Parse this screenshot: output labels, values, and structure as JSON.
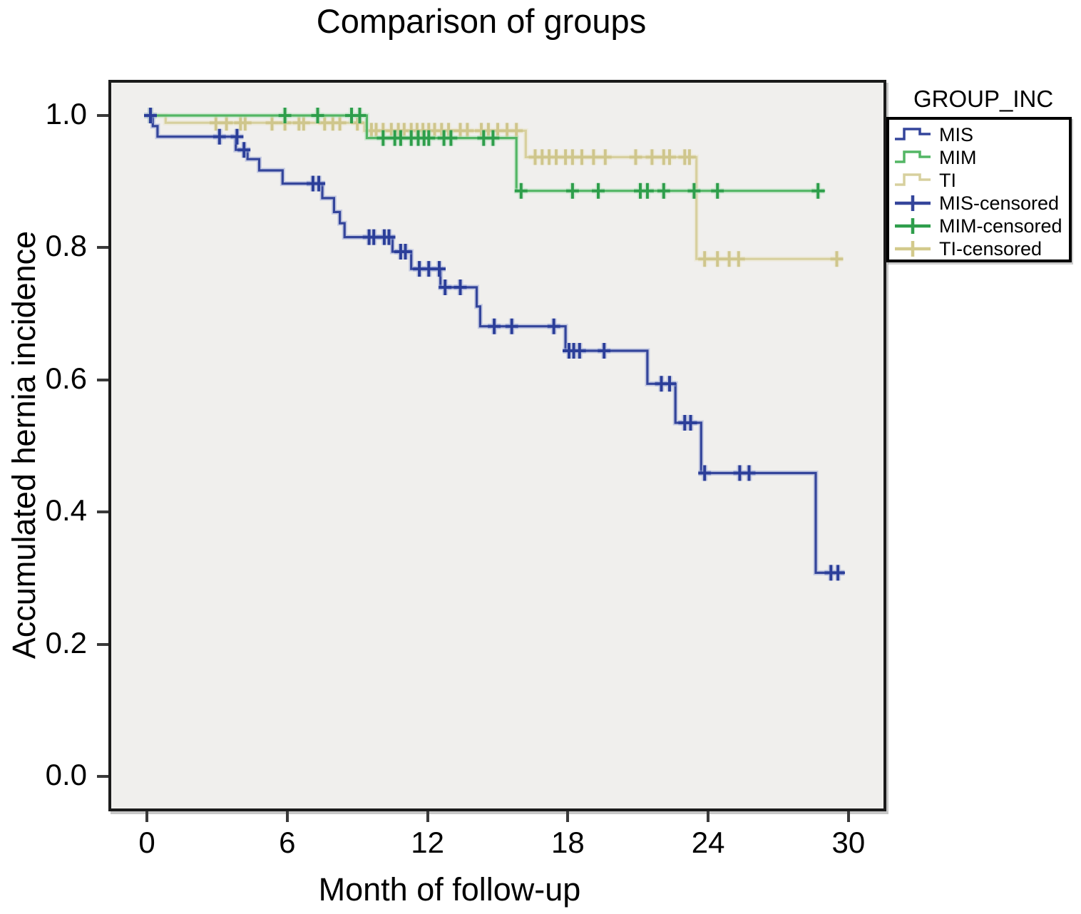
{
  "chart": {
    "title": "Comparison of groups",
    "x_label": "Month of follow-up",
    "y_label": "Accumulated hernia incidence",
    "legend_title": "GROUP_INC"
  },
  "legend": {
    "title": "GROUP_INC",
    "items": [
      {
        "label": "MIS",
        "type": "step",
        "color": "#34459B"
      },
      {
        "label": "MIM",
        "type": "step",
        "color": "#53B665"
      },
      {
        "label": "TI",
        "type": "step",
        "color": "#D7D09E"
      },
      {
        "label": "MIS-censored",
        "type": "censor",
        "color": "#34459B"
      },
      {
        "label": "MIM-censored",
        "type": "censor",
        "color": "#2E9E4B"
      },
      {
        "label": "TI-censored",
        "type": "censor",
        "color": "#D3CA8C"
      }
    ]
  },
  "chart_data": {
    "type": "line",
    "subtype": "kaplan-meier-step",
    "title": "Comparison of groups",
    "xlabel": "Month of follow-up",
    "ylabel": "Accumulated hernia incidence",
    "legend_position": "outside-right-top",
    "grid": false,
    "plot_background": "#F0EFED",
    "x_range": [
      -1.65,
      31.62
    ],
    "y_range": [
      -0.053,
      1.054
    ],
    "x_ticks": [
      0,
      6,
      12,
      18,
      24,
      30
    ],
    "y_ticks": [
      0.0,
      0.2,
      0.4,
      0.6,
      0.8,
      1.0
    ],
    "series": [
      {
        "name": "TI",
        "color": "#D7D09E",
        "halo": "#EAE6CC",
        "censor_color": "#CFC68C",
        "end": 29.75,
        "steps": [
          [
            0,
            1.0
          ],
          [
            0.8,
            0.989
          ],
          [
            9.3,
            0.977
          ],
          [
            16.2,
            0.937
          ],
          [
            23.5,
            0.783
          ]
        ],
        "censors": [
          [
            0.15,
            1.0
          ],
          [
            2.95,
            0.989
          ],
          [
            3.4,
            0.989
          ],
          [
            4.0,
            0.989
          ],
          [
            4.2,
            0.989
          ],
          [
            5.35,
            0.989
          ],
          [
            5.9,
            0.989
          ],
          [
            6.5,
            0.989
          ],
          [
            6.7,
            0.989
          ],
          [
            7.6,
            0.989
          ],
          [
            7.95,
            0.989
          ],
          [
            8.25,
            0.989
          ],
          [
            9.0,
            0.989
          ],
          [
            9.6,
            0.977
          ],
          [
            9.8,
            0.977
          ],
          [
            10.1,
            0.977
          ],
          [
            10.45,
            0.977
          ],
          [
            10.75,
            0.977
          ],
          [
            11.0,
            0.977
          ],
          [
            11.3,
            0.977
          ],
          [
            11.55,
            0.977
          ],
          [
            11.8,
            0.977
          ],
          [
            12.05,
            0.977
          ],
          [
            12.3,
            0.977
          ],
          [
            12.6,
            0.977
          ],
          [
            12.9,
            0.977
          ],
          [
            13.4,
            0.977
          ],
          [
            13.7,
            0.977
          ],
          [
            14.3,
            0.977
          ],
          [
            14.6,
            0.977
          ],
          [
            15.0,
            0.977
          ],
          [
            15.4,
            0.977
          ],
          [
            15.8,
            0.977
          ],
          [
            16.6,
            0.937
          ],
          [
            16.9,
            0.937
          ],
          [
            17.2,
            0.937
          ],
          [
            17.5,
            0.937
          ],
          [
            17.9,
            0.937
          ],
          [
            18.2,
            0.937
          ],
          [
            18.6,
            0.937
          ],
          [
            19.1,
            0.937
          ],
          [
            19.6,
            0.937
          ],
          [
            20.9,
            0.937
          ],
          [
            21.6,
            0.937
          ],
          [
            22.1,
            0.937
          ],
          [
            22.35,
            0.937
          ],
          [
            23.0,
            0.937
          ],
          [
            23.2,
            0.937
          ],
          [
            23.85,
            0.783
          ],
          [
            24.4,
            0.783
          ],
          [
            24.9,
            0.783
          ],
          [
            25.3,
            0.783
          ],
          [
            29.5,
            0.783
          ]
        ]
      },
      {
        "name": "MIM",
        "color": "#53B665",
        "halo": "#B5DFBE",
        "censor_color": "#2E9E4B",
        "end": 29.0,
        "steps": [
          [
            0,
            1.0
          ],
          [
            9.4,
            0.966
          ],
          [
            15.8,
            0.886
          ]
        ],
        "censors": [
          [
            0.15,
            1.0
          ],
          [
            5.9,
            1.0
          ],
          [
            7.3,
            1.0
          ],
          [
            8.75,
            1.0
          ],
          [
            9.1,
            1.0
          ],
          [
            10.1,
            0.966
          ],
          [
            10.6,
            0.966
          ],
          [
            10.85,
            0.966
          ],
          [
            11.3,
            0.966
          ],
          [
            11.6,
            0.966
          ],
          [
            11.85,
            0.966
          ],
          [
            12.05,
            0.966
          ],
          [
            12.7,
            0.966
          ],
          [
            13.0,
            0.966
          ],
          [
            14.4,
            0.966
          ],
          [
            14.8,
            0.966
          ],
          [
            16.0,
            0.886
          ],
          [
            18.2,
            0.886
          ],
          [
            19.3,
            0.886
          ],
          [
            21.1,
            0.886
          ],
          [
            21.4,
            0.886
          ],
          [
            22.1,
            0.886
          ],
          [
            23.4,
            0.886
          ],
          [
            24.4,
            0.886
          ],
          [
            28.7,
            0.886
          ]
        ]
      },
      {
        "name": "MIS",
        "color": "#34459B",
        "halo": "#9AA6D6",
        "censor_color": "#2B3E99",
        "end": 29.85,
        "steps": [
          [
            0,
            1.0
          ],
          [
            0.25,
            0.984
          ],
          [
            0.45,
            0.968
          ],
          [
            3.8,
            0.948
          ],
          [
            4.3,
            0.934
          ],
          [
            4.8,
            0.917
          ],
          [
            5.8,
            0.897
          ],
          [
            7.5,
            0.875
          ],
          [
            8.0,
            0.854
          ],
          [
            8.25,
            0.837
          ],
          [
            8.45,
            0.816
          ],
          [
            10.5,
            0.794
          ],
          [
            11.3,
            0.768
          ],
          [
            12.55,
            0.74
          ],
          [
            14.1,
            0.711
          ],
          [
            14.25,
            0.681
          ],
          [
            17.9,
            0.644
          ],
          [
            21.4,
            0.594
          ],
          [
            22.6,
            0.535
          ],
          [
            23.7,
            0.459
          ],
          [
            28.6,
            0.308
          ]
        ],
        "censors": [
          [
            0.15,
            1.0
          ],
          [
            3.1,
            0.968
          ],
          [
            3.85,
            0.968
          ],
          [
            4.15,
            0.948
          ],
          [
            7.1,
            0.897
          ],
          [
            7.35,
            0.897
          ],
          [
            9.5,
            0.816
          ],
          [
            9.7,
            0.816
          ],
          [
            10.15,
            0.816
          ],
          [
            10.35,
            0.816
          ],
          [
            10.85,
            0.794
          ],
          [
            11.05,
            0.794
          ],
          [
            11.65,
            0.768
          ],
          [
            12.05,
            0.768
          ],
          [
            12.5,
            0.768
          ],
          [
            12.75,
            0.74
          ],
          [
            13.4,
            0.74
          ],
          [
            14.85,
            0.681
          ],
          [
            15.6,
            0.681
          ],
          [
            17.4,
            0.681
          ],
          [
            18.05,
            0.644
          ],
          [
            18.25,
            0.644
          ],
          [
            18.5,
            0.644
          ],
          [
            19.55,
            0.644
          ],
          [
            22.0,
            0.594
          ],
          [
            22.35,
            0.594
          ],
          [
            23.0,
            0.535
          ],
          [
            23.25,
            0.535
          ],
          [
            23.85,
            0.459
          ],
          [
            25.35,
            0.459
          ],
          [
            25.75,
            0.459
          ],
          [
            29.25,
            0.308
          ],
          [
            29.55,
            0.308
          ]
        ]
      }
    ]
  }
}
